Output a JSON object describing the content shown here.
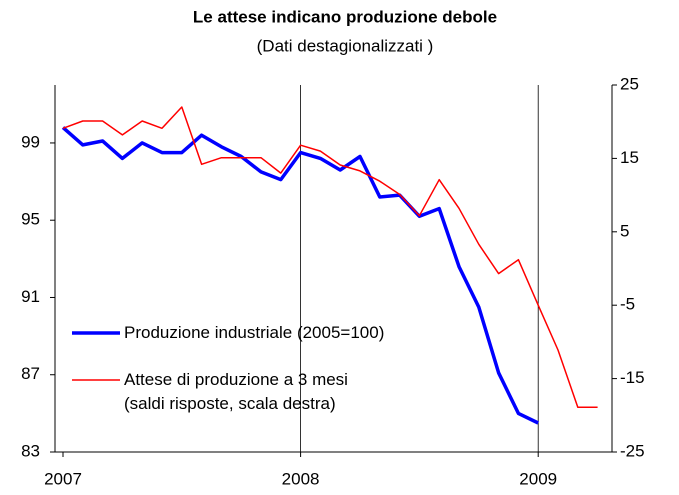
{
  "chart_data": {
    "type": "line",
    "title": "Le attese indicano produzione debole",
    "subtitle": "(Dati destagionalizzati )",
    "categories": [
      "2007",
      null,
      null,
      null,
      null,
      null,
      null,
      null,
      null,
      null,
      null,
      null,
      "2008",
      null,
      null,
      null,
      null,
      null,
      null,
      null,
      null,
      null,
      null,
      null,
      "2009",
      null,
      null,
      null
    ],
    "series": [
      {
        "name": "Produzione industriale (2005=100)",
        "color": "#0000ff",
        "axis": "y",
        "values": [
          99.8,
          98.9,
          99.1,
          98.2,
          99.0,
          98.5,
          98.5,
          99.4,
          98.8,
          98.3,
          97.5,
          97.1,
          98.5,
          98.2,
          97.6,
          98.3,
          96.2,
          96.3,
          95.2,
          95.6,
          92.6,
          90.5,
          87.1,
          85.0,
          84.5,
          null,
          null,
          null
        ]
      },
      {
        "name": "Attese di produzione a 3 mesi (saldi risposte, scala destra)",
        "color": "#ff0000",
        "axis": "y2",
        "values": [
          19.1,
          20.1,
          20.1,
          18.2,
          20.1,
          19.1,
          22.0,
          14.2,
          15.1,
          15.1,
          15.1,
          13.0,
          16.8,
          16.0,
          14.1,
          13.3,
          11.9,
          10.1,
          7.2,
          12.1,
          8.2,
          3.3,
          -0.7,
          1.2,
          -5.0,
          -11.1,
          -18.9,
          -18.9
        ]
      }
    ],
    "ylim": [
      83,
      102
    ],
    "yticks": [
      83,
      87,
      91,
      95,
      99
    ],
    "y2lim": [
      -25,
      25
    ],
    "y2ticks": [
      -25,
      -15,
      -5,
      5,
      15,
      25
    ]
  }
}
